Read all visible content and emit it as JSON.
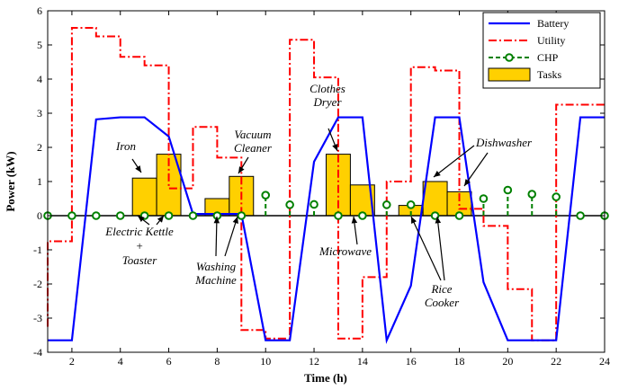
{
  "chart_data": {
    "type": "line",
    "xlabel": "Time (h)",
    "ylabel": "Power (kW)",
    "xlim": [
      1,
      24
    ],
    "ylim": [
      -4,
      6
    ],
    "xticks": [
      2,
      4,
      6,
      8,
      10,
      12,
      14,
      16,
      18,
      20,
      22,
      24
    ],
    "yticks": [
      -4,
      -3,
      -2,
      -1,
      0,
      1,
      2,
      3,
      4,
      5,
      6
    ],
    "grid": false,
    "legend_position": "top-right",
    "colors": {
      "battery": "#0000ff",
      "utility": "#ff0000",
      "chp": "#008000",
      "tasks_fill": "#ffd000",
      "zero_line": "#000000"
    },
    "legend": [
      "Battery",
      "Utility",
      "CHP",
      "Tasks"
    ],
    "series": [
      {
        "name": "Battery",
        "style": "solid line",
        "x": [
          1,
          2,
          3,
          4,
          5,
          6,
          7,
          8,
          9,
          10,
          11,
          12,
          13,
          14,
          15,
          16,
          17,
          18,
          19,
          20,
          21,
          22,
          23,
          24
        ],
        "y": [
          -3.65,
          -3.65,
          2.82,
          2.88,
          2.88,
          2.32,
          0.05,
          0.05,
          0.05,
          -3.65,
          -3.65,
          1.58,
          2.88,
          2.88,
          -3.65,
          -2.05,
          2.88,
          2.88,
          -1.95,
          -3.65,
          -3.65,
          -3.65,
          2.88,
          2.88
        ]
      },
      {
        "name": "Utility",
        "style": "dash-dot step",
        "x": [
          1,
          2,
          3,
          4,
          5,
          6,
          7,
          8,
          9,
          10,
          11,
          12,
          13,
          14,
          15,
          16,
          17,
          18,
          19,
          20,
          21,
          22,
          23,
          24
        ],
        "y": [
          -3.25,
          -0.75,
          5.5,
          5.25,
          4.65,
          4.4,
          0.8,
          2.6,
          1.7,
          -3.35,
          -3.6,
          5.15,
          4.05,
          -3.6,
          -1.8,
          1.0,
          4.35,
          4.25,
          0.2,
          -0.3,
          -2.15,
          -3.65,
          3.25,
          3.25
        ]
      },
      {
        "name": "CHP",
        "style": "stem",
        "x": [
          1,
          2,
          3,
          4,
          5,
          6,
          7,
          8,
          9,
          10,
          11,
          12,
          13,
          14,
          15,
          16,
          17,
          18,
          19,
          20,
          21,
          22,
          23,
          24
        ],
        "y": [
          0,
          0,
          0,
          0,
          0,
          0,
          0,
          0,
          0,
          0.6,
          0.32,
          0.33,
          0,
          0,
          0.32,
          0.32,
          0,
          0,
          0.5,
          0.75,
          0.63,
          0.55,
          0,
          0
        ]
      },
      {
        "name": "Tasks",
        "style": "bar",
        "x": [
          5,
          6,
          8,
          9,
          13,
          14,
          16,
          17,
          18
        ],
        "y": [
          1.1,
          1.8,
          0.5,
          1.15,
          1.8,
          0.9,
          0.3,
          1.0,
          0.7
        ]
      }
    ],
    "annotations": [
      {
        "id": "iron",
        "lines": [
          "Iron"
        ]
      },
      {
        "id": "vacuum",
        "lines": [
          "Vacuum",
          "Cleaner"
        ]
      },
      {
        "id": "dryer",
        "lines": [
          "Clothes",
          "Dryer"
        ]
      },
      {
        "id": "dishwasher",
        "lines": [
          "Dishwasher"
        ]
      },
      {
        "id": "kettle",
        "lines": [
          "Electric Kettle",
          "+",
          "Toaster"
        ]
      },
      {
        "id": "washing",
        "lines": [
          "Washing",
          "Machine"
        ]
      },
      {
        "id": "microwave",
        "lines": [
          "Microwave"
        ]
      },
      {
        "id": "rice",
        "lines": [
          "Rice",
          "Cooker"
        ]
      }
    ]
  }
}
